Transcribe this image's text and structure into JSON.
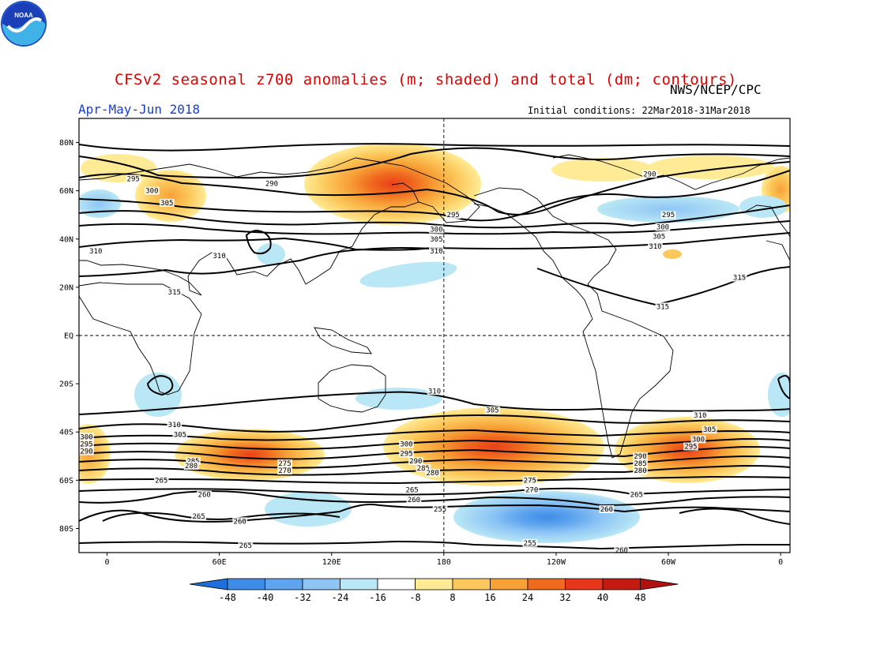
{
  "title": "CFSv2 seasonal z700 anomalies (m; shaded) and total (dm; contours)",
  "agency": "NWS/NCEP/CPC",
  "season": "Apr-May-Jun 2018",
  "initial_conditions": "Initial conditions: 22Mar2018-31Mar2018",
  "logo_icon": "noaa-logo-icon",
  "map": {
    "lat_labels": [
      "80N",
      "60N",
      "40N",
      "20N",
      "EQ",
      "20S",
      "40S",
      "60S",
      "80S"
    ],
    "lon_labels": [
      "0",
      "60E",
      "120E",
      "180",
      "120W",
      "60W",
      "0"
    ],
    "lat_values": [
      80,
      60,
      40,
      20,
      0,
      -20,
      -40,
      -60,
      -80
    ],
    "lon_values": [
      0,
      60,
      120,
      180,
      240,
      300,
      360
    ]
  },
  "colorbar": {
    "ticks": [
      "-48",
      "-40",
      "-32",
      "-24",
      "-16",
      "-8",
      "8",
      "16",
      "24",
      "32",
      "40",
      "48"
    ],
    "colors": [
      "#1e6fdc",
      "#3f8ce8",
      "#5ea4ee",
      "#8ec5f5",
      "#b9e7f5",
      "#ffffff",
      "#ffeb95",
      "#fcc85b",
      "#f7a137",
      "#f06a1e",
      "#e7361a",
      "#c41a10",
      "#b01010"
    ]
  },
  "contour_labels": [
    {
      "text": "295",
      "lon": 14,
      "lat": 65
    },
    {
      "text": "300",
      "lon": 24,
      "lat": 60
    },
    {
      "text": "305",
      "lon": 32,
      "lat": 55
    },
    {
      "text": "290",
      "lon": 88,
      "lat": 63
    },
    {
      "text": "295",
      "lon": 185,
      "lat": 50
    },
    {
      "text": "300",
      "lon": 176,
      "lat": 44
    },
    {
      "text": "305",
      "lon": 176,
      "lat": 40
    },
    {
      "text": "310",
      "lon": 176,
      "lat": 35
    },
    {
      "text": "290",
      "lon": 290,
      "lat": 67
    },
    {
      "text": "295",
      "lon": 300,
      "lat": 50
    },
    {
      "text": "300",
      "lon": 297,
      "lat": 45
    },
    {
      "text": "305",
      "lon": 295,
      "lat": 41
    },
    {
      "text": "310",
      "lon": 293,
      "lat": 37
    },
    {
      "text": "310",
      "lon": -6,
      "lat": 35
    },
    {
      "text": "310",
      "lon": 60,
      "lat": 33
    },
    {
      "text": "315",
      "lon": 36,
      "lat": 18
    },
    {
      "text": "315",
      "lon": 338,
      "lat": 24
    },
    {
      "text": "315",
      "lon": 297,
      "lat": 12
    },
    {
      "text": "310",
      "lon": 175,
      "lat": -23
    },
    {
      "text": "305",
      "lon": 206,
      "lat": -31
    },
    {
      "text": "310",
      "lon": 317,
      "lat": -33
    },
    {
      "text": "310",
      "lon": 36,
      "lat": -37
    },
    {
      "text": "305",
      "lon": 39,
      "lat": -41
    },
    {
      "text": "300",
      "lon": -11,
      "lat": -42
    },
    {
      "text": "295",
      "lon": -11,
      "lat": -45
    },
    {
      "text": "290",
      "lon": -11,
      "lat": -48
    },
    {
      "text": "305",
      "lon": 322,
      "lat": -39
    },
    {
      "text": "300",
      "lon": 316,
      "lat": -43
    },
    {
      "text": "295",
      "lon": 312,
      "lat": -46
    },
    {
      "text": "290",
      "lon": 285,
      "lat": -50
    },
    {
      "text": "285",
      "lon": 285,
      "lat": -53
    },
    {
      "text": "280",
      "lon": 285,
      "lat": -56
    },
    {
      "text": "300",
      "lon": 160,
      "lat": -45
    },
    {
      "text": "295",
      "lon": 160,
      "lat": -49
    },
    {
      "text": "290",
      "lon": 165,
      "lat": -52
    },
    {
      "text": "285",
      "lon": 169,
      "lat": -55
    },
    {
      "text": "280",
      "lon": 174,
      "lat": -57
    },
    {
      "text": "285",
      "lon": 46,
      "lat": -52
    },
    {
      "text": "280",
      "lon": 45,
      "lat": -54
    },
    {
      "text": "275",
      "lon": 95,
      "lat": -53
    },
    {
      "text": "270",
      "lon": 95,
      "lat": -56
    },
    {
      "text": "265",
      "lon": 29,
      "lat": -60
    },
    {
      "text": "260",
      "lon": 52,
      "lat": -66
    },
    {
      "text": "265",
      "lon": 49,
      "lat": -75
    },
    {
      "text": "260",
      "lon": 71,
      "lat": -77
    },
    {
      "text": "265",
      "lon": 74,
      "lat": -87
    },
    {
      "text": "275",
      "lon": 226,
      "lat": -60
    },
    {
      "text": "270",
      "lon": 227,
      "lat": -64
    },
    {
      "text": "265",
      "lon": 163,
      "lat": -64
    },
    {
      "text": "260",
      "lon": 164,
      "lat": -68
    },
    {
      "text": "265",
      "lon": 283,
      "lat": -66
    },
    {
      "text": "260",
      "lon": 267,
      "lat": -72
    },
    {
      "text": "255",
      "lon": 178,
      "lat": -72
    },
    {
      "text": "255",
      "lon": 226,
      "lat": -86
    },
    {
      "text": "260",
      "lon": 275,
      "lat": -89
    }
  ]
}
